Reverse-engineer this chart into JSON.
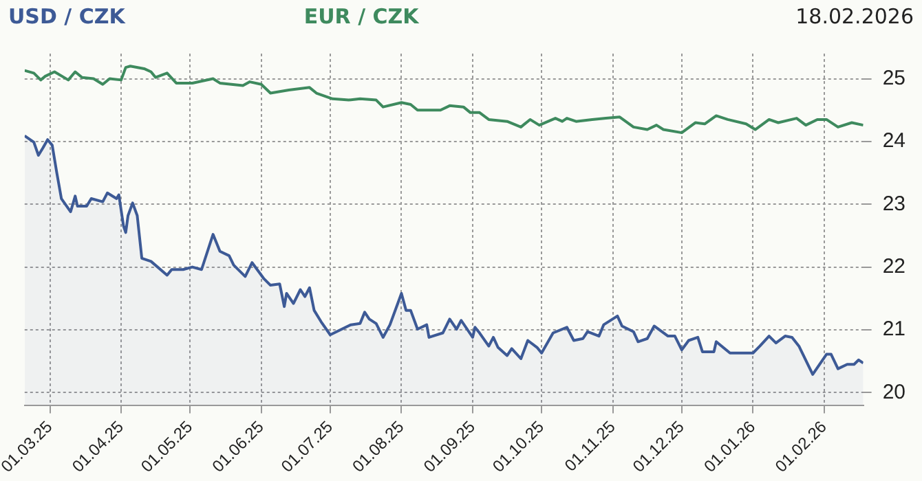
{
  "chart_data": {
    "type": "line",
    "legend": "top left",
    "grid": true,
    "marker": "none",
    "line_style": "solid",
    "annotations": [
      "18.02.2026"
    ],
    "xlim": [
      "2025-02-18",
      "2026-02-18"
    ],
    "xticks": [
      {
        "value": "2025-03-01",
        "label": "01.03.25"
      },
      {
        "value": "2025-04-01",
        "label": "01.04.25"
      },
      {
        "value": "2025-05-01",
        "label": "01.05.25"
      },
      {
        "value": "2025-06-01",
        "label": "01.06.25"
      },
      {
        "value": "2025-07-01",
        "label": "01.07.25"
      },
      {
        "value": "2025-08-01",
        "label": "01.08.25"
      },
      {
        "value": "2025-09-01",
        "label": "01.09.25"
      },
      {
        "value": "2025-10-01",
        "label": "01.10.25"
      },
      {
        "value": "2025-11-01",
        "label": "01.11.25"
      },
      {
        "value": "2025-12-01",
        "label": "01.12.25"
      },
      {
        "value": "2026-01-01",
        "label": "01.01.26"
      },
      {
        "value": "2026-02-01",
        "label": "01.02.26"
      }
    ],
    "ylim": [
      19.8,
      25.4
    ],
    "yticks": [
      20,
      21,
      22,
      23,
      24,
      25
    ],
    "series": [
      {
        "name": "USD / CZK",
        "type": "area",
        "color": "#3d5a96",
        "x": [
          "2025-02-18",
          "2025-02-22",
          "2025-02-24",
          "2025-02-26",
          "2025-02-28",
          "2025-03-02",
          "2025-03-04",
          "2025-03-06",
          "2025-03-10",
          "2025-03-12",
          "2025-03-13",
          "2025-03-17",
          "2025-03-19",
          "2025-03-24",
          "2025-03-26",
          "2025-03-30",
          "2025-03-31",
          "2025-04-02",
          "2025-04-03",
          "2025-04-04",
          "2025-04-06",
          "2025-04-08",
          "2025-04-10",
          "2025-04-14",
          "2025-04-21",
          "2025-04-23",
          "2025-04-28",
          "2025-05-02",
          "2025-05-06",
          "2025-05-11",
          "2025-05-14",
          "2025-05-18",
          "2025-05-20",
          "2025-05-25",
          "2025-05-28",
          "2025-06-02",
          "2025-06-05",
          "2025-06-09",
          "2025-06-11",
          "2025-06-12",
          "2025-06-15",
          "2025-06-18",
          "2025-06-20",
          "2025-06-22",
          "2025-06-24",
          "2025-06-27",
          "2025-07-01",
          "2025-07-10",
          "2025-07-14",
          "2025-07-16",
          "2025-07-18",
          "2025-07-21",
          "2025-07-24",
          "2025-07-27",
          "2025-08-01",
          "2025-08-03",
          "2025-08-05",
          "2025-08-08",
          "2025-08-12",
          "2025-08-13",
          "2025-08-19",
          "2025-08-22",
          "2025-08-25",
          "2025-08-27",
          "2025-09-01",
          "2025-09-02",
          "2025-09-04",
          "2025-09-08",
          "2025-09-10",
          "2025-09-12",
          "2025-09-16",
          "2025-09-18",
          "2025-09-22",
          "2025-09-25",
          "2025-09-29",
          "2025-10-01",
          "2025-10-06",
          "2025-10-12",
          "2025-10-15",
          "2025-10-19",
          "2025-10-21",
          "2025-10-26",
          "2025-10-28",
          "2025-11-03",
          "2025-11-05",
          "2025-11-10",
          "2025-11-12",
          "2025-11-16",
          "2025-11-19",
          "2025-11-25",
          "2025-11-28",
          "2025-12-01",
          "2025-12-04",
          "2025-12-08",
          "2025-12-10",
          "2025-12-15",
          "2025-12-16",
          "2025-12-22",
          "2026-01-01",
          "2026-01-04",
          "2026-01-08",
          "2026-01-11",
          "2026-01-15",
          "2026-01-18",
          "2026-01-21",
          "2026-01-27",
          "2026-02-02",
          "2026-02-04",
          "2026-02-07",
          "2026-02-11",
          "2026-02-14",
          "2026-02-16",
          "2026-02-18"
        ],
        "values": [
          24.09,
          23.99,
          23.78,
          23.9,
          24.03,
          23.94,
          23.5,
          23.09,
          22.88,
          23.13,
          22.97,
          22.97,
          23.09,
          23.04,
          23.18,
          23.09,
          23.15,
          22.66,
          22.55,
          22.82,
          23.02,
          22.82,
          22.14,
          22.09,
          21.87,
          21.96,
          21.96,
          22.0,
          21.96,
          22.52,
          22.25,
          22.18,
          22.03,
          21.85,
          22.07,
          21.82,
          21.71,
          21.73,
          21.37,
          21.58,
          21.42,
          21.64,
          21.53,
          21.67,
          21.31,
          21.13,
          20.92,
          21.08,
          21.1,
          21.28,
          21.17,
          21.1,
          20.88,
          21.08,
          21.58,
          21.31,
          21.31,
          21.01,
          21.08,
          20.88,
          20.95,
          21.17,
          21.01,
          21.15,
          20.88,
          21.04,
          20.95,
          20.74,
          20.88,
          20.72,
          20.59,
          20.7,
          20.54,
          20.83,
          20.72,
          20.63,
          20.95,
          21.04,
          20.83,
          20.86,
          20.97,
          20.9,
          21.08,
          21.22,
          21.06,
          20.97,
          20.81,
          20.86,
          21.06,
          20.9,
          20.9,
          20.68,
          20.83,
          20.88,
          20.65,
          20.65,
          20.81,
          20.63,
          20.63,
          20.74,
          20.9,
          20.79,
          20.9,
          20.88,
          20.74,
          20.29,
          20.61,
          20.61,
          20.38,
          20.45,
          20.45,
          20.52,
          20.47
        ]
      },
      {
        "name": "EUR / CZK",
        "color": "#3e8a5e",
        "x": [
          "2025-02-18",
          "2025-02-22",
          "2025-02-25",
          "2025-02-27",
          "2025-03-03",
          "2025-03-09",
          "2025-03-12",
          "2025-03-15",
          "2025-03-20",
          "2025-03-24",
          "2025-03-27",
          "2025-04-01",
          "2025-04-03",
          "2025-04-05",
          "2025-04-11",
          "2025-04-14",
          "2025-04-16",
          "2025-04-21",
          "2025-04-25",
          "2025-05-02",
          "2025-05-11",
          "2025-05-14",
          "2025-05-24",
          "2025-05-27",
          "2025-06-01",
          "2025-06-05",
          "2025-06-13",
          "2025-06-22",
          "2025-06-25",
          "2025-07-02",
          "2025-07-09",
          "2025-07-14",
          "2025-07-21",
          "2025-07-24",
          "2025-08-01",
          "2025-08-05",
          "2025-08-08",
          "2025-08-18",
          "2025-08-22",
          "2025-08-28",
          "2025-08-31",
          "2025-09-04",
          "2025-09-08",
          "2025-09-16",
          "2025-09-22",
          "2025-09-26",
          "2025-09-30",
          "2025-10-07",
          "2025-10-10",
          "2025-10-12",
          "2025-10-16",
          "2025-10-23",
          "2025-10-29",
          "2025-11-04",
          "2025-11-10",
          "2025-11-16",
          "2025-11-20",
          "2025-11-23",
          "2025-12-01",
          "2025-12-07",
          "2025-12-11",
          "2025-12-16",
          "2025-12-21",
          "2025-12-29",
          "2026-01-02",
          "2026-01-08",
          "2026-01-12",
          "2026-01-20",
          "2026-01-24",
          "2026-01-29",
          "2026-02-02",
          "2026-02-07",
          "2026-02-13",
          "2026-02-18"
        ],
        "values": [
          25.13,
          25.09,
          24.98,
          25.04,
          25.11,
          24.98,
          25.11,
          25.02,
          25.0,
          24.91,
          25.0,
          24.98,
          25.18,
          25.2,
          25.16,
          25.11,
          25.02,
          25.09,
          24.93,
          24.93,
          25.0,
          24.93,
          24.89,
          24.95,
          24.91,
          24.77,
          24.82,
          24.86,
          24.77,
          24.68,
          24.66,
          24.68,
          24.66,
          24.55,
          24.62,
          24.59,
          24.5,
          24.5,
          24.57,
          24.55,
          24.46,
          24.46,
          24.35,
          24.32,
          24.23,
          24.35,
          24.26,
          24.37,
          24.32,
          24.37,
          24.32,
          24.35,
          24.37,
          24.39,
          24.23,
          24.19,
          24.26,
          24.19,
          24.14,
          24.3,
          24.28,
          24.41,
          24.35,
          24.28,
          24.19,
          24.35,
          24.3,
          24.37,
          24.26,
          24.35,
          24.35,
          24.23,
          24.3,
          24.26
        ]
      }
    ]
  }
}
